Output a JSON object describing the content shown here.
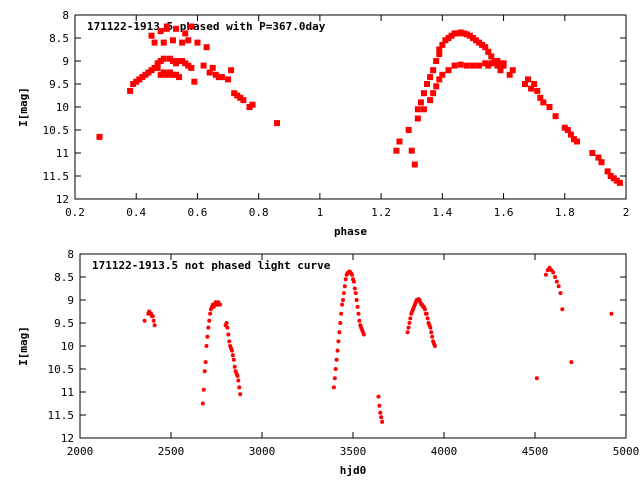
{
  "colors": {
    "points": "#ff0000",
    "frame": "#000000",
    "background": "#ffffff"
  },
  "chart_data": [
    {
      "type": "scatter",
      "title": "171122-1913.5 phased with P=367.0day",
      "xlabel": "phase",
      "ylabel": "I[mag]",
      "xlim": [
        0.2,
        2.0
      ],
      "ylim": [
        12,
        8
      ],
      "y_inverted": true,
      "xticks": [
        "0.2",
        "0.4",
        "0.6",
        "0.8",
        "1",
        "1.2",
        "1.4",
        "1.6",
        "1.8",
        "2"
      ],
      "yticks": [
        "8",
        "8.5",
        "9",
        "9.5",
        "10",
        "10.5",
        "11",
        "11.5",
        "12"
      ],
      "grid": false,
      "legend": "none",
      "series": [
        {
          "x": [
            0.28,
            0.38,
            0.39,
            0.4,
            0.41,
            0.42,
            0.43,
            0.44,
            0.45,
            0.45,
            0.46,
            0.46,
            0.47,
            0.48,
            0.48,
            0.49,
            0.49,
            0.5,
            0.5,
            0.51,
            0.52,
            0.52,
            0.53,
            0.53,
            0.54,
            0.55,
            0.56,
            0.57,
            0.58,
            0.59,
            0.6,
            0.62,
            0.63,
            0.64,
            0.65,
            0.66,
            0.67,
            0.68,
            0.7,
            0.71,
            0.72,
            0.73,
            0.74,
            0.75,
            0.77,
            0.78,
            0.86,
            1.25,
            1.26,
            1.29,
            1.3,
            1.31,
            1.32,
            1.32,
            1.33,
            1.34,
            1.35,
            1.36,
            1.37,
            1.38,
            1.39,
            1.39,
            1.4,
            1.41,
            1.42,
            1.43,
            1.44,
            1.45,
            1.46,
            1.47,
            1.48,
            1.49,
            1.5,
            1.51,
            1.52,
            1.53,
            1.54,
            1.55,
            1.56,
            1.57,
            1.58,
            1.59,
            1.6,
            1.62,
            1.63,
            1.67,
            1.68,
            1.69,
            1.7,
            1.71,
            1.72,
            1.73,
            1.75,
            1.77,
            1.8,
            1.81,
            1.82,
            1.83,
            1.84,
            1.89,
            1.91,
            1.92,
            1.94,
            1.95,
            1.96,
            1.97,
            1.98,
            1.34,
            1.36,
            1.37,
            1.38,
            1.39,
            1.4,
            1.42,
            1.44,
            1.46,
            1.48,
            1.5,
            1.52,
            1.54,
            1.55,
            1.56,
            1.58,
            1.6,
            0.47,
            0.48,
            0.49,
            0.5,
            0.51,
            0.52,
            0.53,
            0.54,
            0.55,
            0.56,
            0.57,
            0.58
          ],
          "y": [
            10.65,
            9.65,
            9.5,
            9.45,
            9.4,
            9.35,
            9.3,
            9.25,
            9.2,
            8.45,
            9.15,
            8.6,
            9.15,
            8.35,
            9.3,
            9.25,
            8.6,
            9.3,
            8.25,
            9.25,
            9.3,
            8.55,
            9.3,
            8.3,
            9.35,
            8.6,
            8.4,
            8.55,
            8.25,
            9.45,
            8.6,
            9.1,
            8.7,
            9.25,
            9.15,
            9.3,
            9.35,
            9.35,
            9.4,
            9.2,
            9.7,
            9.75,
            9.8,
            9.85,
            10.0,
            9.95,
            10.35,
            10.95,
            10.75,
            10.5,
            10.95,
            11.25,
            10.05,
            10.25,
            9.9,
            9.7,
            9.5,
            9.35,
            9.2,
            9.0,
            8.85,
            8.75,
            8.65,
            8.55,
            8.5,
            8.45,
            8.4,
            8.4,
            8.38,
            8.4,
            8.42,
            8.45,
            8.5,
            8.55,
            8.6,
            8.65,
            8.7,
            8.8,
            8.9,
            9.0,
            9.1,
            9.2,
            9.05,
            9.3,
            9.2,
            9.5,
            9.4,
            9.6,
            9.5,
            9.65,
            9.8,
            9.9,
            10.0,
            10.2,
            10.45,
            10.5,
            10.6,
            10.7,
            10.75,
            11.0,
            11.1,
            11.2,
            11.4,
            11.5,
            11.55,
            11.6,
            11.65,
            10.05,
            9.85,
            9.7,
            9.55,
            9.4,
            9.3,
            9.2,
            9.1,
            9.08,
            9.1,
            9.1,
            9.1,
            9.05,
            9.1,
            9.05,
            9.0,
            9.1,
            9.05,
            9.0,
            8.95,
            8.3,
            8.95,
            9.0,
            9.05,
            9.0,
            9.0,
            9.05,
            9.1,
            9.15
          ]
        }
      ]
    },
    {
      "type": "scatter",
      "title": "171122-1913.5 not phased light curve",
      "xlabel": "hjd0",
      "ylabel": "I[mag]",
      "xlim": [
        2000,
        5000
      ],
      "ylim": [
        12,
        8
      ],
      "y_inverted": true,
      "xticks": [
        "2000",
        "2500",
        "3000",
        "3500",
        "4000",
        "4500",
        "5000"
      ],
      "yticks": [
        "8",
        "8.5",
        "9",
        "9.5",
        "10",
        "10.5",
        "11",
        "11.5",
        "12"
      ],
      "grid": false,
      "legend": "none",
      "series": [
        {
          "x": [
            2355,
            2375,
            2380,
            2385,
            2390,
            2395,
            2400,
            2405,
            2410,
            2675,
            2680,
            2685,
            2690,
            2695,
            2700,
            2705,
            2710,
            2715,
            2720,
            2725,
            2730,
            2735,
            2740,
            2745,
            2750,
            2755,
            2760,
            2765,
            2770,
            2800,
            2805,
            2810,
            2815,
            2820,
            2825,
            2830,
            2835,
            2840,
            2845,
            2850,
            2855,
            2860,
            2865,
            2870,
            2875,
            2880,
            3395,
            3400,
            3405,
            3410,
            3415,
            3420,
            3425,
            3430,
            3435,
            3440,
            3445,
            3450,
            3455,
            3460,
            3465,
            3470,
            3475,
            3480,
            3485,
            3490,
            3495,
            3500,
            3505,
            3510,
            3515,
            3520,
            3525,
            3530,
            3535,
            3540,
            3545,
            3550,
            3555,
            3560,
            3640,
            3645,
            3650,
            3655,
            3660,
            3800,
            3805,
            3810,
            3815,
            3820,
            3825,
            3830,
            3835,
            3840,
            3845,
            3850,
            3855,
            3860,
            3865,
            3870,
            3875,
            3880,
            3885,
            3890,
            3895,
            3900,
            3905,
            3910,
            3915,
            3920,
            3925,
            3930,
            3935,
            3940,
            3945,
            3950,
            4510,
            4560,
            4570,
            4580,
            4590,
            4600,
            4610,
            4620,
            4630,
            4640,
            4650,
            4700,
            4920
          ],
          "y": [
            9.45,
            9.3,
            9.25,
            9.3,
            9.3,
            9.35,
            9.35,
            9.45,
            9.55,
            11.25,
            10.95,
            10.55,
            10.35,
            10.0,
            9.8,
            9.6,
            9.45,
            9.3,
            9.2,
            9.15,
            9.1,
            9.15,
            9.1,
            9.05,
            9.1,
            9.1,
            9.05,
            9.1,
            9.1,
            9.55,
            9.5,
            9.6,
            9.75,
            9.9,
            10.0,
            10.05,
            10.1,
            10.2,
            10.3,
            10.45,
            10.55,
            10.6,
            10.65,
            10.75,
            10.9,
            11.05,
            10.9,
            10.7,
            10.5,
            10.3,
            10.1,
            9.9,
            9.7,
            9.5,
            9.3,
            9.1,
            9.0,
            8.85,
            8.7,
            8.55,
            8.45,
            8.42,
            8.4,
            8.38,
            8.4,
            8.42,
            8.45,
            8.55,
            8.6,
            8.75,
            8.85,
            9.0,
            9.15,
            9.3,
            9.45,
            9.55,
            9.6,
            9.65,
            9.7,
            9.75,
            11.1,
            11.3,
            11.45,
            11.55,
            11.65,
            9.7,
            9.6,
            9.5,
            9.4,
            9.3,
            9.25,
            9.2,
            9.15,
            9.1,
            9.05,
            9.0,
            9.0,
            8.98,
            9.0,
            9.05,
            9.1,
            9.1,
            9.15,
            9.15,
            9.2,
            9.3,
            9.3,
            9.4,
            9.5,
            9.55,
            9.6,
            9.7,
            9.8,
            9.9,
            9.95,
            10.0,
            10.7,
            8.45,
            8.35,
            8.3,
            8.35,
            8.4,
            8.5,
            8.6,
            8.7,
            8.85,
            9.2,
            10.35,
            9.3
          ]
        }
      ]
    }
  ]
}
